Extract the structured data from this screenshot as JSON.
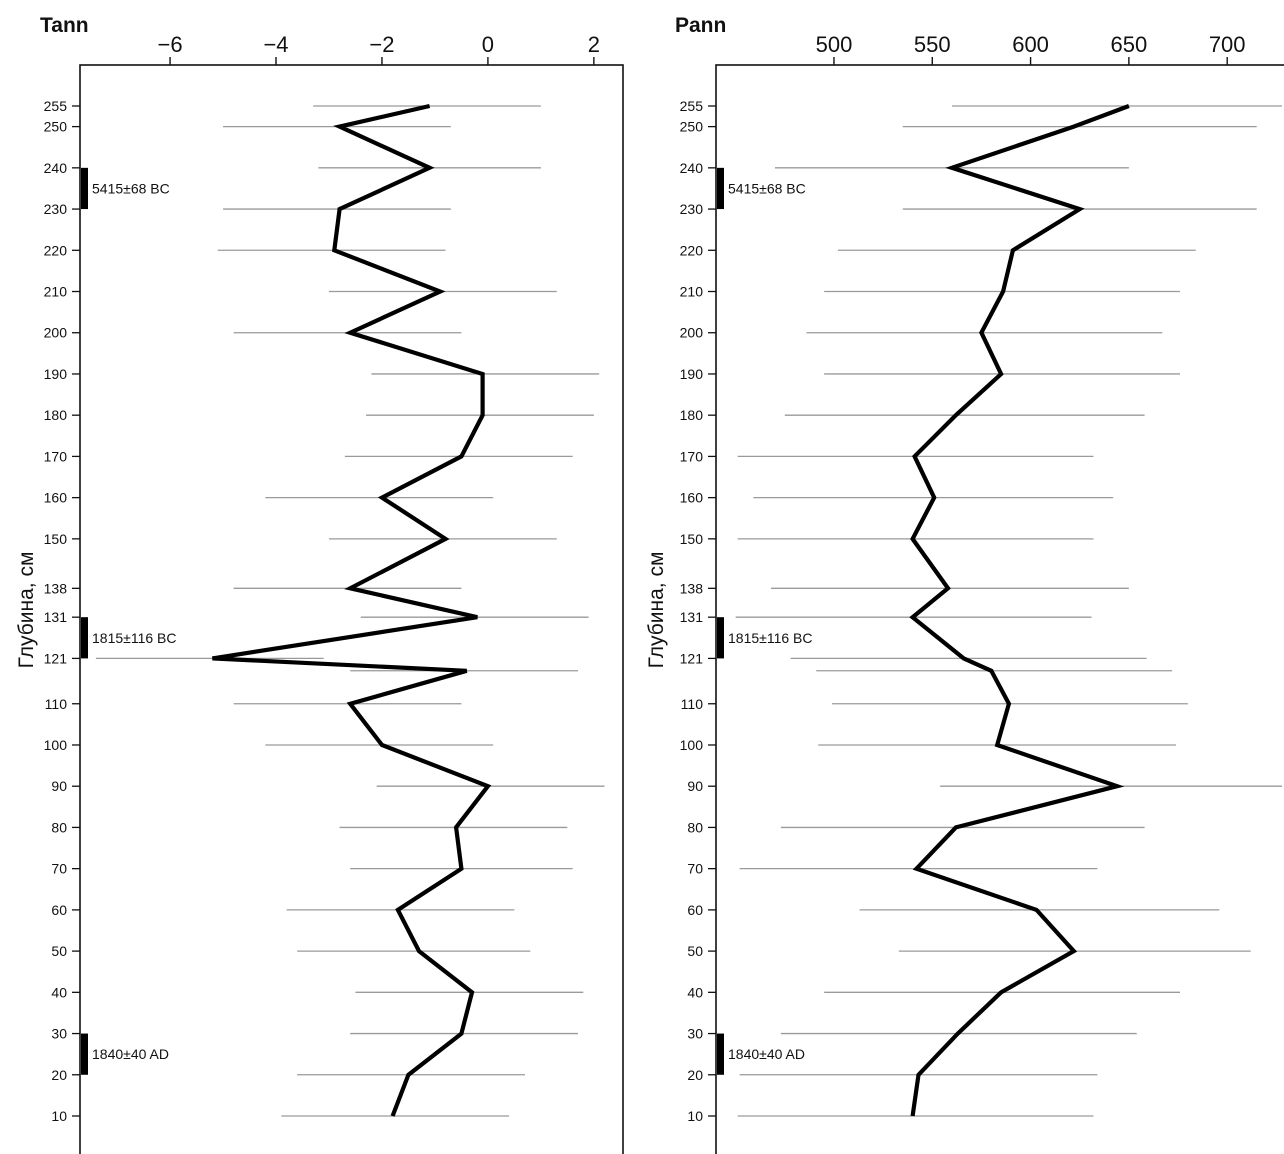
{
  "chart_data": [
    {
      "type": "line",
      "title": "Tann",
      "ylabel": "Глубина, см",
      "xlabel": "",
      "x_ticks": [
        -6,
        -4,
        -2,
        0,
        2
      ],
      "x_tick_labels": [
        "−6",
        "−4",
        "−2",
        "0",
        "2"
      ],
      "xlim": [
        -7.7,
        2.55
      ],
      "ylim": [
        0,
        262
      ],
      "y_axis_inverted": true,
      "y_ticks": [
        255,
        250,
        240,
        230,
        220,
        210,
        200,
        190,
        180,
        170,
        160,
        150,
        138,
        131,
        121,
        110,
        100,
        90,
        80,
        70,
        60,
        50,
        40,
        30,
        20,
        10
      ],
      "dates": [
        {
          "label": "5415±68 BC",
          "depth_top": 240,
          "depth_bottom": 230
        },
        {
          "label": "1815±116 BC",
          "depth_top": 131,
          "depth_bottom": 121
        },
        {
          "label": "1840±40 AD",
          "depth_top": 30,
          "depth_bottom": 20
        }
      ],
      "series": [
        {
          "points": [
            {
              "depth": 255,
              "value": -1.1,
              "low": -3.3,
              "high": 1.0
            },
            {
              "depth": 250,
              "value": -2.8,
              "low": -5.0,
              "high": -0.7
            },
            {
              "depth": 240,
              "value": -1.1,
              "low": -3.2,
              "high": 1.0
            },
            {
              "depth": 230,
              "value": -2.8,
              "low": -5.0,
              "high": -0.7
            },
            {
              "depth": 220,
              "value": -2.9,
              "low": -5.1,
              "high": -0.8
            },
            {
              "depth": 210,
              "value": -0.9,
              "low": -3.0,
              "high": 1.3
            },
            {
              "depth": 200,
              "value": -2.6,
              "low": -4.8,
              "high": -0.5
            },
            {
              "depth": 190,
              "value": -0.1,
              "low": -2.2,
              "high": 2.1
            },
            {
              "depth": 180,
              "value": -0.1,
              "low": -2.3,
              "high": 2.0
            },
            {
              "depth": 170,
              "value": -0.5,
              "low": -2.7,
              "high": 1.6
            },
            {
              "depth": 160,
              "value": -2.0,
              "low": -4.2,
              "high": 0.1
            },
            {
              "depth": 150,
              "value": -0.8,
              "low": -3.0,
              "high": 1.3
            },
            {
              "depth": 138,
              "value": -2.6,
              "low": -4.8,
              "high": -0.5
            },
            {
              "depth": 131,
              "value": -0.2,
              "low": -2.4,
              "high": 1.9
            },
            {
              "depth": 121,
              "value": -5.2,
              "low": -7.4,
              "high": -3.1
            },
            {
              "depth": 118,
              "value": -0.4,
              "low": -2.6,
              "high": 1.7
            },
            {
              "depth": 110,
              "value": -2.6,
              "low": -4.8,
              "high": -0.5
            },
            {
              "depth": 100,
              "value": -2.0,
              "low": -4.2,
              "high": 0.1
            },
            {
              "depth": 90,
              "value": 0.0,
              "low": -2.1,
              "high": 2.2
            },
            {
              "depth": 80,
              "value": -0.6,
              "low": -2.8,
              "high": 1.5
            },
            {
              "depth": 70,
              "value": -0.5,
              "low": -2.6,
              "high": 1.6
            },
            {
              "depth": 60,
              "value": -1.7,
              "low": -3.8,
              "high": 0.5
            },
            {
              "depth": 50,
              "value": -1.3,
              "low": -3.6,
              "high": 0.8
            },
            {
              "depth": 40,
              "value": -0.3,
              "low": -2.5,
              "high": 1.8
            },
            {
              "depth": 30,
              "value": -0.5,
              "low": -2.6,
              "high": 1.7
            },
            {
              "depth": 20,
              "value": -1.5,
              "low": -3.6,
              "high": 0.7
            },
            {
              "depth": 10,
              "value": -1.8,
              "low": -3.9,
              "high": 0.4
            }
          ]
        }
      ],
      "colors": {
        "line": "#000000",
        "errorbar": "#9a9a9a"
      }
    },
    {
      "type": "line",
      "title": "Pann",
      "ylabel": "Глубина, см",
      "xlabel": "",
      "x_ticks": [
        500,
        550,
        600,
        650,
        700
      ],
      "x_tick_labels": [
        "500",
        "550",
        "600",
        "650",
        "700"
      ],
      "xlim": [
        440,
        735
      ],
      "ylim": [
        0,
        262
      ],
      "y_axis_inverted": true,
      "y_ticks": [
        255,
        250,
        240,
        230,
        220,
        210,
        200,
        190,
        180,
        170,
        160,
        150,
        138,
        131,
        121,
        110,
        100,
        90,
        80,
        70,
        60,
        50,
        40,
        30,
        20,
        10
      ],
      "dates": [
        {
          "label": "5415±68 BC",
          "depth_top": 240,
          "depth_bottom": 230
        },
        {
          "label": "1815±116 BC",
          "depth_top": 131,
          "depth_bottom": 121
        },
        {
          "label": "1840±40 AD",
          "depth_top": 30,
          "depth_bottom": 20
        }
      ],
      "series": [
        {
          "points": [
            {
              "depth": 255,
              "value": 650,
              "low": 560,
              "high": 740
            },
            {
              "depth": 250,
              "value": 622,
              "low": 535,
              "high": 715
            },
            {
              "depth": 240,
              "value": 560,
              "low": 470,
              "high": 650
            },
            {
              "depth": 230,
              "value": 625,
              "low": 535,
              "high": 715
            },
            {
              "depth": 220,
              "value": 591,
              "low": 502,
              "high": 684
            },
            {
              "depth": 210,
              "value": 586,
              "low": 495,
              "high": 676
            },
            {
              "depth": 200,
              "value": 575,
              "low": 486,
              "high": 667
            },
            {
              "depth": 190,
              "value": 585,
              "low": 495,
              "high": 676
            },
            {
              "depth": 180,
              "value": 562,
              "low": 475,
              "high": 658
            },
            {
              "depth": 170,
              "value": 541,
              "low": 451,
              "high": 632
            },
            {
              "depth": 160,
              "value": 551,
              "low": 459,
              "high": 642
            },
            {
              "depth": 150,
              "value": 540,
              "low": 451,
              "high": 632
            },
            {
              "depth": 138,
              "value": 558,
              "low": 468,
              "high": 650
            },
            {
              "depth": 131,
              "value": 540,
              "low": 450,
              "high": 631
            },
            {
              "depth": 121,
              "value": 566,
              "low": 478,
              "high": 659
            },
            {
              "depth": 118,
              "value": 580,
              "low": 491,
              "high": 672
            },
            {
              "depth": 110,
              "value": 589,
              "low": 499,
              "high": 680
            },
            {
              "depth": 100,
              "value": 583,
              "low": 492,
              "high": 674
            },
            {
              "depth": 90,
              "value": 644,
              "low": 554,
              "high": 735
            },
            {
              "depth": 80,
              "value": 562,
              "low": 473,
              "high": 658
            },
            {
              "depth": 70,
              "value": 542,
              "low": 452,
              "high": 634
            },
            {
              "depth": 60,
              "value": 603,
              "low": 513,
              "high": 696
            },
            {
              "depth": 50,
              "value": 622,
              "low": 533,
              "high": 712
            },
            {
              "depth": 40,
              "value": 585,
              "low": 495,
              "high": 676
            },
            {
              "depth": 30,
              "value": 563,
              "low": 473,
              "high": 654
            },
            {
              "depth": 20,
              "value": 543,
              "low": 452,
              "high": 634
            },
            {
              "depth": 10,
              "value": 540,
              "low": 451,
              "high": 632
            }
          ]
        }
      ],
      "colors": {
        "line": "#000000",
        "errorbar": "#9a9a9a"
      }
    }
  ]
}
